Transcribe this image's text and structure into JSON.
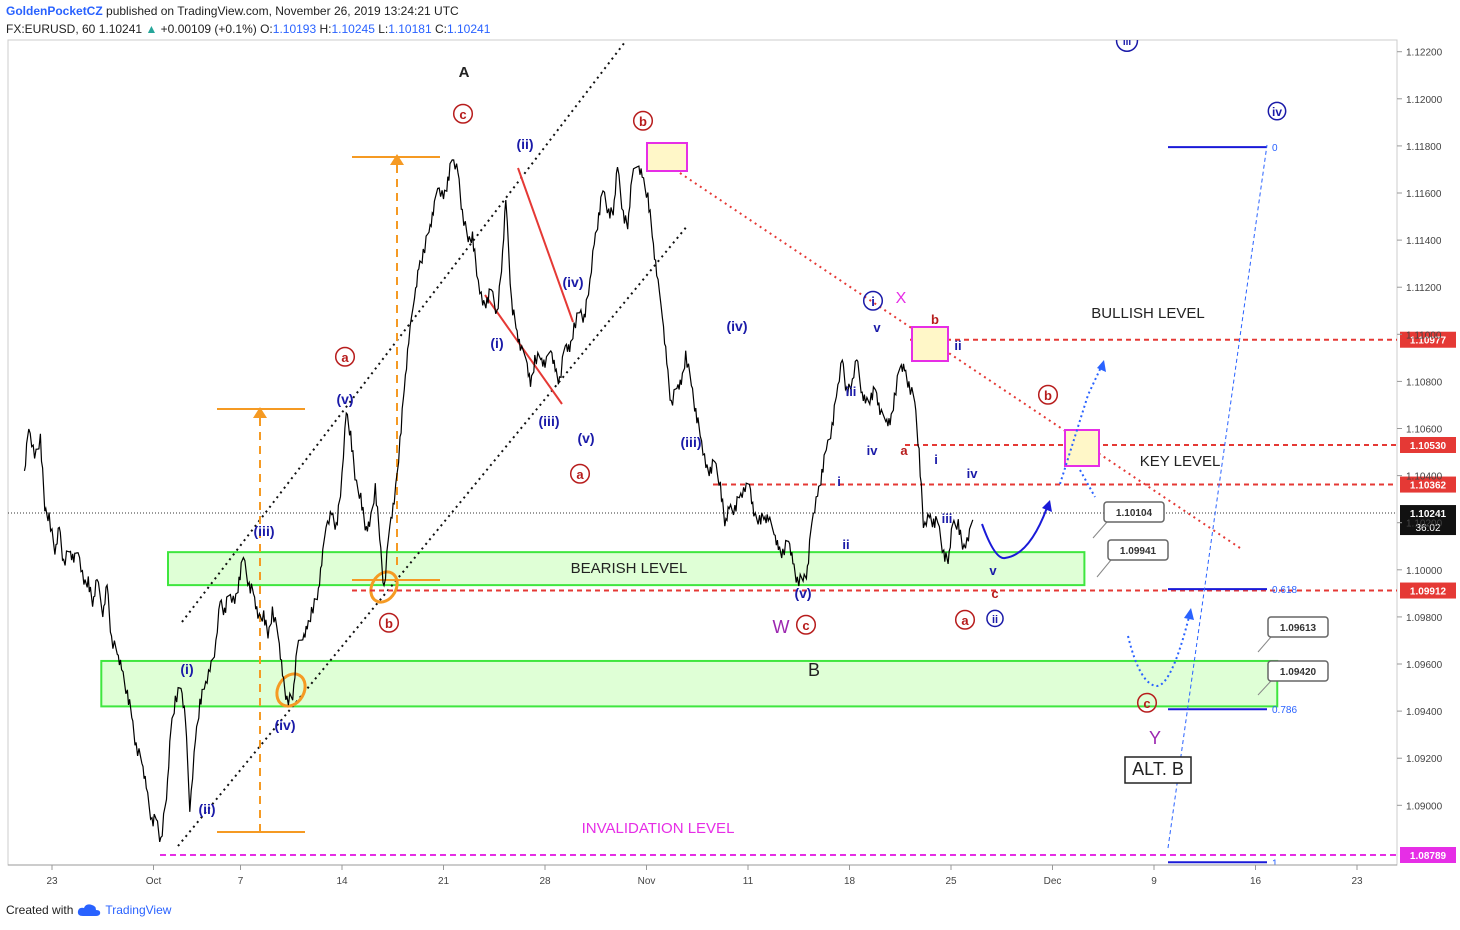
{
  "header": {
    "author": "GoldenPocketCZ",
    "published": "published on TradingView.com, November 26, 2019 13:24:21 UTC",
    "symbol": "FX:EURUSD, 60",
    "last": "1.10241",
    "change_arrow": "▲",
    "change": "+0.00109 (+0.1%)",
    "o_label": "O:",
    "o": "1.10193",
    "h_label": "H:",
    "h": "1.10245",
    "l_label": "L:",
    "l": "1.10181",
    "c_label": "C:",
    "c": "1.10241"
  },
  "footer": {
    "created_with": "Created with",
    "brand": "TradingView"
  },
  "colors": {
    "wave_red": "#b71c1c",
    "wave_blue": "#1a1aa8",
    "zone_green": "#3fe63f",
    "zone_fill": "#d9ffcf",
    "orange": "#f59a23",
    "magenta": "#e62ee6",
    "purple": "#9c27b0",
    "level_red": "#e53935"
  },
  "chart_data": {
    "type": "line",
    "title": "EURUSD 1H Elliott Wave",
    "ylim": [
      1.0868,
      1.1222
    ],
    "x_ticks": [
      {
        "d": 23,
        "label": "23"
      },
      {
        "d": 30,
        "label": "Oct"
      },
      {
        "d": 36,
        "label": "7"
      },
      {
        "d": 43,
        "label": "14"
      },
      {
        "d": 50,
        "label": "21"
      },
      {
        "d": 57,
        "label": "28"
      },
      {
        "d": 64,
        "label": "Nov"
      },
      {
        "d": 71,
        "label": "11"
      },
      {
        "d": 78,
        "label": "18"
      },
      {
        "d": 85,
        "label": "25"
      },
      {
        "d": 92,
        "label": "Dec"
      },
      {
        "d": 99,
        "label": "9"
      },
      {
        "d": 106,
        "label": "16"
      },
      {
        "d": 113,
        "label": "23"
      }
    ],
    "y_ticks": [
      "1.12200",
      "1.12000",
      "1.11800",
      "1.11600",
      "1.11400",
      "1.11200",
      "1.11000",
      "1.10800",
      "1.10600",
      "1.10400",
      "1.10200",
      "1.10000",
      "1.09800",
      "1.09600",
      "1.09400",
      "1.09200",
      "1.09000"
    ],
    "price_path": [
      [
        21.1,
        1.1042
      ],
      [
        21.4,
        1.1062
      ],
      [
        21.8,
        1.1047
      ],
      [
        22.2,
        1.1055
      ],
      [
        22.5,
        1.1026
      ],
      [
        22.8,
        1.1023
      ],
      [
        23.2,
        1.1009
      ],
      [
        23.5,
        1.1018
      ],
      [
        23.8,
        1.1002
      ],
      [
        24.2,
        1.1009
      ],
      [
        24.5,
        1.1002
      ],
      [
        24.8,
        1.101
      ],
      [
        25.2,
        1.0994
      ],
      [
        25.5,
        1.0995
      ],
      [
        25.8,
        1.0986
      ],
      [
        26.1,
        1.0995
      ],
      [
        26.5,
        1.0983
      ],
      [
        26.8,
        1.0994
      ],
      [
        27.1,
        1.097
      ],
      [
        27.5,
        1.0966
      ],
      [
        27.8,
        1.0957
      ],
      [
        28.2,
        1.0946
      ],
      [
        28.5,
        1.0938
      ],
      [
        28.8,
        1.0925
      ],
      [
        29.2,
        1.092
      ],
      [
        29.5,
        1.0907
      ],
      [
        29.9,
        1.0892
      ],
      [
        30.2,
        1.0895
      ],
      [
        30.5,
        1.0885
      ],
      [
        30.9,
        1.0905
      ],
      [
        31.2,
        1.0932
      ],
      [
        31.5,
        1.0944
      ],
      [
        31.9,
        1.0951
      ],
      [
        32.2,
        1.0935
      ],
      [
        32.5,
        1.09
      ],
      [
        32.9,
        1.0928
      ],
      [
        33.2,
        1.0943
      ],
      [
        33.5,
        1.0951
      ],
      [
        33.9,
        1.0956
      ],
      [
        34.2,
        1.0966
      ],
      [
        34.6,
        1.0987
      ],
      [
        34.9,
        1.0982
      ],
      [
        35.2,
        1.0991
      ],
      [
        35.6,
        1.0985
      ],
      [
        35.9,
        1.0994
      ],
      [
        36.2,
        1.1006
      ],
      [
        36.6,
        1.0993
      ],
      [
        36.9,
        1.0992
      ],
      [
        37.2,
        1.0979
      ],
      [
        37.6,
        1.098
      ],
      [
        37.9,
        1.0972
      ],
      [
        38.2,
        1.0983
      ],
      [
        38.6,
        1.0974
      ],
      [
        38.9,
        1.0955
      ],
      [
        39.2,
        1.0944
      ],
      [
        39.6,
        1.0946
      ],
      [
        39.9,
        1.0965
      ],
      [
        40.3,
        1.0973
      ],
      [
        40.6,
        1.0975
      ],
      [
        40.9,
        1.0982
      ],
      [
        41.3,
        1.0989
      ],
      [
        41.6,
        1.1001
      ],
      [
        41.9,
        1.1021
      ],
      [
        42.3,
        1.1024
      ],
      [
        42.6,
        1.1018
      ],
      [
        42.9,
        1.1033
      ],
      [
        43.3,
        1.1066
      ],
      [
        43.6,
        1.1056
      ],
      [
        43.9,
        1.1039
      ],
      [
        44.3,
        1.1031
      ],
      [
        44.6,
        1.1019
      ],
      [
        44.9,
        1.1018
      ],
      [
        45.3,
        1.1034
      ],
      [
        45.6,
        1.1014
      ],
      [
        45.9,
        1.0992
      ],
      [
        46.3,
        1.1021
      ],
      [
        46.6,
        1.1028
      ],
      [
        47.0,
        1.1054
      ],
      [
        47.3,
        1.1078
      ],
      [
        47.6,
        1.1095
      ],
      [
        48.0,
        1.1118
      ],
      [
        48.3,
        1.1128
      ],
      [
        48.6,
        1.1134
      ],
      [
        49.0,
        1.1145
      ],
      [
        49.3,
        1.115
      ],
      [
        49.6,
        1.1165
      ],
      [
        50.0,
        1.1158
      ],
      [
        50.3,
        1.1165
      ],
      [
        50.6,
        1.1176
      ],
      [
        51.0,
        1.1168
      ],
      [
        51.3,
        1.115
      ],
      [
        51.7,
        1.114
      ],
      [
        52.0,
        1.1142
      ],
      [
        52.3,
        1.1127
      ],
      [
        52.7,
        1.1112
      ],
      [
        53.0,
        1.1113
      ],
      [
        53.3,
        1.112
      ],
      [
        53.7,
        1.1109
      ],
      [
        54.0,
        1.1129
      ],
      [
        54.3,
        1.1157
      ],
      [
        54.7,
        1.1112
      ],
      [
        55.0,
        1.1104
      ],
      [
        55.3,
        1.1092
      ],
      [
        55.7,
        1.1092
      ],
      [
        56.0,
        1.1078
      ],
      [
        56.3,
        1.1089
      ],
      [
        56.7,
        1.1091
      ],
      [
        57.0,
        1.1085
      ],
      [
        57.4,
        1.1096
      ],
      [
        57.7,
        1.1085
      ],
      [
        58.0,
        1.108
      ],
      [
        58.4,
        1.1097
      ],
      [
        58.7,
        1.1092
      ],
      [
        59.0,
        1.1102
      ],
      [
        59.4,
        1.111
      ],
      [
        59.7,
        1.1107
      ],
      [
        60.0,
        1.1119
      ],
      [
        60.4,
        1.1138
      ],
      [
        60.7,
        1.1149
      ],
      [
        61.0,
        1.1162
      ],
      [
        61.4,
        1.1152
      ],
      [
        61.7,
        1.1153
      ],
      [
        62.0,
        1.1171
      ],
      [
        62.4,
        1.115
      ],
      [
        62.7,
        1.1146
      ],
      [
        63.0,
        1.1165
      ],
      [
        63.4,
        1.1174
      ],
      [
        63.7,
        1.1167
      ],
      [
        64.1,
        1.1158
      ],
      [
        64.4,
        1.1143
      ],
      [
        64.7,
        1.1124
      ],
      [
        65.1,
        1.111
      ],
      [
        65.4,
        1.1088
      ],
      [
        65.7,
        1.107
      ],
      [
        66.1,
        1.1079
      ],
      [
        66.4,
        1.1078
      ],
      [
        66.7,
        1.109
      ],
      [
        67.1,
        1.1079
      ],
      [
        67.4,
        1.1067
      ],
      [
        67.7,
        1.1059
      ],
      [
        68.1,
        1.1043
      ],
      [
        68.4,
        1.1041
      ],
      [
        68.7,
        1.1047
      ],
      [
        69.1,
        1.1036
      ],
      [
        69.4,
        1.1021
      ],
      [
        69.7,
        1.1026
      ],
      [
        70.1,
        1.1025
      ],
      [
        70.4,
        1.1032
      ],
      [
        70.8,
        1.1032
      ],
      [
        71.1,
        1.1039
      ],
      [
        71.4,
        1.1023
      ],
      [
        71.8,
        1.1021
      ],
      [
        72.1,
        1.1023
      ],
      [
        72.4,
        1.102
      ],
      [
        72.8,
        1.1018
      ],
      [
        73.1,
        1.1009
      ],
      [
        73.4,
        1.1007
      ],
      [
        73.8,
        1.1014
      ],
      [
        74.1,
        1.1002
      ],
      [
        74.4,
        1.0994
      ],
      [
        74.8,
        1.0996
      ],
      [
        75.1,
        1.1
      ],
      [
        75.4,
        1.1022
      ],
      [
        75.8,
        1.1031
      ],
      [
        76.1,
        1.104
      ],
      [
        76.4,
        1.1052
      ],
      [
        76.8,
        1.1061
      ],
      [
        77.1,
        1.1076
      ],
      [
        77.5,
        1.1089
      ],
      [
        77.8,
        1.1075
      ],
      [
        78.1,
        1.1078
      ],
      [
        78.5,
        1.1088
      ],
      [
        78.8,
        1.1078
      ],
      [
        79.1,
        1.1071
      ],
      [
        79.5,
        1.1073
      ],
      [
        79.8,
        1.1078
      ],
      [
        80.1,
        1.1065
      ],
      [
        80.5,
        1.1066
      ],
      [
        80.8,
        1.1062
      ],
      [
        81.1,
        1.1073
      ],
      [
        81.5,
        1.1088
      ],
      [
        81.8,
        1.1084
      ],
      [
        82.1,
        1.1077
      ],
      [
        82.5,
        1.1072
      ],
      [
        82.8,
        1.105
      ],
      [
        83.1,
        1.102
      ],
      [
        83.5,
        1.1022
      ],
      [
        83.8,
        1.1019
      ],
      [
        84.1,
        1.1021
      ],
      [
        84.5,
        1.1007
      ],
      [
        84.8,
        1.1005
      ],
      [
        85.1,
        1.1019
      ],
      [
        85.5,
        1.1019
      ],
      [
        85.8,
        1.101
      ],
      [
        86.2,
        1.1011
      ],
      [
        86.5,
        1.1024
      ]
    ],
    "horizontal_levels": [
      {
        "label": "BULLISH LEVEL",
        "value": 1.10977,
        "tag": "1.10977"
      },
      {
        "label": "KEY LEVEL",
        "value": 1.10362,
        "tag": "1.10362"
      },
      {
        "label": "",
        "value": 1.1053,
        "tag": "1.10530"
      },
      {
        "label": "",
        "value": 1.09912,
        "tag": "1.09912"
      },
      {
        "label": "INVALIDATION LEVEL",
        "value": 1.08789,
        "tag": "1.08789"
      }
    ],
    "current_price": {
      "value": 1.10241,
      "tag": "1.10241",
      "countdown": "36:02"
    },
    "zones": [
      {
        "label": "BEARISH LEVEL",
        "d1": 31.0,
        "d2": 94.2,
        "top": 1.10075,
        "bottom": 1.09935
      },
      {
        "label": "B",
        "d1": 26.4,
        "d2": 107.5,
        "top": 1.09613,
        "bottom": 1.0942
      }
    ],
    "callouts": [
      "1.10104",
      "1.09941",
      "1.09613",
      "1.09420"
    ],
    "fib": [
      {
        "label": "0",
        "value": 1.11795
      },
      {
        "label": "0.618",
        "value": 1.09918
      },
      {
        "label": "0.786",
        "value": 1.09408
      },
      {
        "label": "1",
        "value": 1.08758
      }
    ],
    "annotations": [
      "A",
      "ⓒ",
      "ⓐ",
      "ⓑ",
      "(v)",
      "(iii)",
      "(i)",
      "(ii)",
      "(iv)",
      "ⓑ",
      "(ii)",
      "(iv)",
      "(i)",
      "(iii)",
      "(v)",
      "ⓐ",
      "(iv)",
      "(iii)",
      "(v)",
      "W",
      "ⓒ",
      "ⓘ",
      "X",
      "v",
      "iii",
      "iv",
      "i",
      "ii",
      "b",
      "a",
      "i",
      "ii",
      "iii",
      "iv",
      "v",
      "c",
      "ⓐ",
      "ⓘⓘ",
      "ⓑ",
      "ⓒ",
      "Y",
      "ALT. B",
      "ⓘⓥ",
      "ⓘⓘⓘ"
    ]
  }
}
